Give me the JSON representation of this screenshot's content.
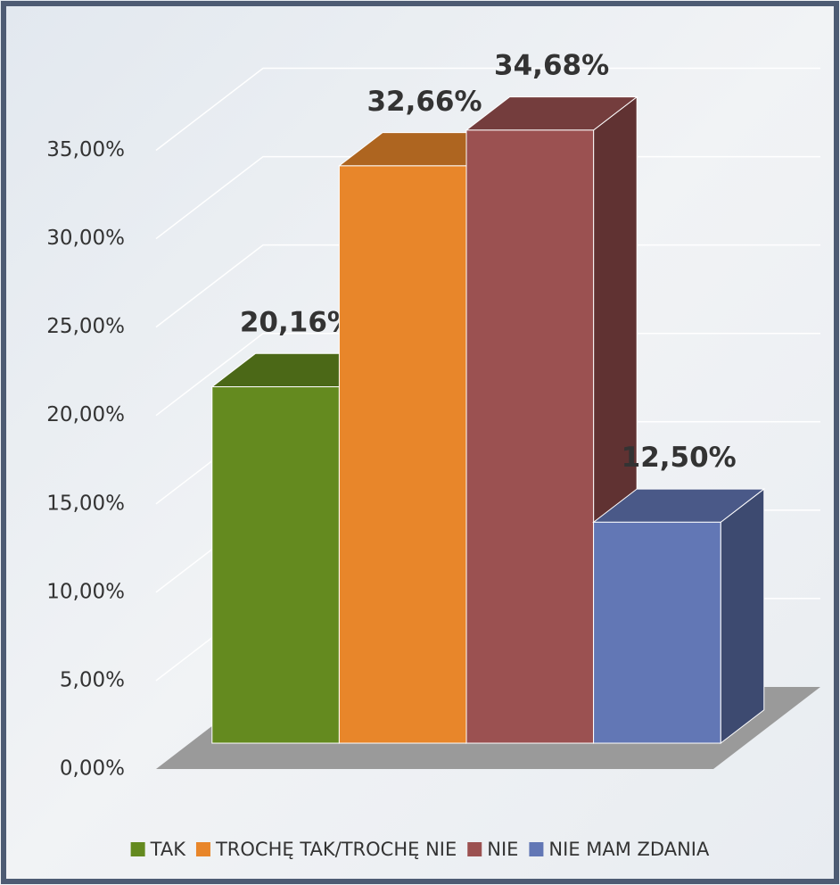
{
  "chart_data": {
    "type": "bar3d",
    "categories": [
      "TAK",
      "TROCHĘ TAK/TROCHĘ NIE",
      "NIE",
      "NIE MAM ZDANIA"
    ],
    "values": [
      20.16,
      32.66,
      34.68,
      12.5
    ],
    "value_labels": [
      "20,16%",
      "32,66%",
      "34,68%",
      "12,50%"
    ],
    "colors": [
      "#648a1f",
      "#e8862a",
      "#9b5151",
      "#6277b5"
    ],
    "ylim": [
      0,
      35
    ],
    "yticks": [
      {
        "value": 0,
        "label": "0,00%"
      },
      {
        "value": 5,
        "label": "5,00%"
      },
      {
        "value": 10,
        "label": "10,00%"
      },
      {
        "value": 15,
        "label": "15,00%"
      },
      {
        "value": 20,
        "label": "20,00%"
      },
      {
        "value": 25,
        "label": "25,00%"
      },
      {
        "value": 30,
        "label": "30,00%"
      },
      {
        "value": 35,
        "label": "35,00%"
      }
    ],
    "grid": true,
    "legend": "bottom"
  }
}
